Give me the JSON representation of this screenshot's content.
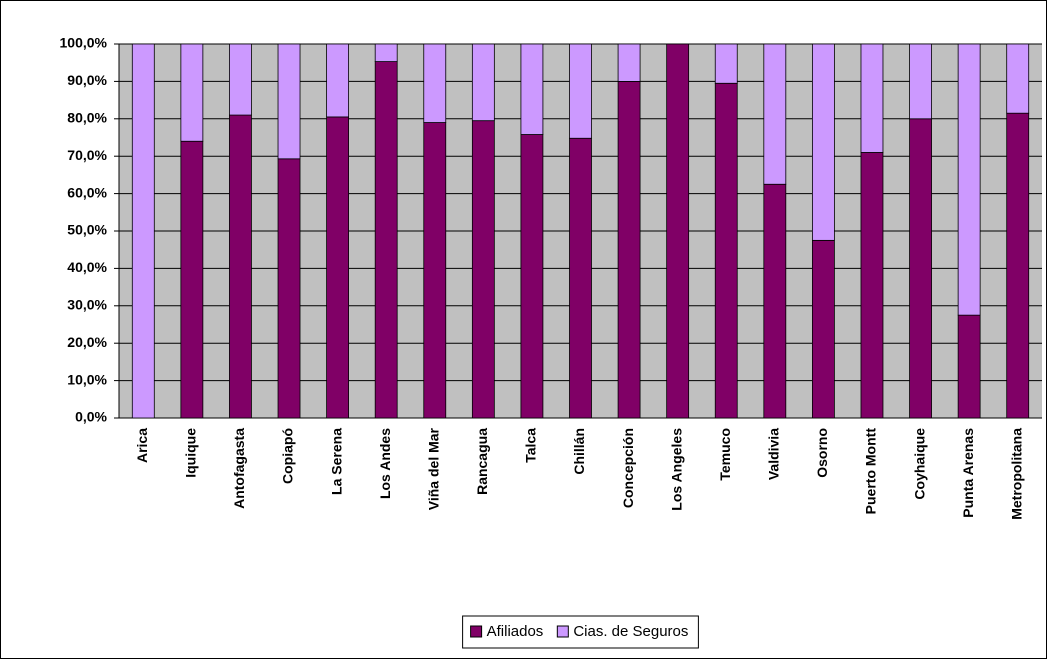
{
  "chart_data": {
    "type": "stacked_bar_100",
    "categories": [
      "Arica",
      "Iquique",
      "Antofagasta",
      "Copiapó",
      "La Serena",
      "Los Andes",
      "Viña del Mar",
      "Rancagua",
      "Talca",
      "Chillán",
      "Concepción",
      "Los Angeles",
      "Temuco",
      "Valdivia",
      "Osorno",
      "Puerto Montt",
      "Coyhaique",
      "Punta Arenas",
      "Metropolitana"
    ],
    "series": [
      {
        "name": "Afiliados",
        "color": "#800066",
        "values": [
          0,
          74,
          81,
          69.3,
          80.5,
          95.3,
          79,
          79.5,
          75.8,
          74.8,
          90,
          100,
          89.5,
          62.5,
          47.5,
          71,
          80,
          27.5,
          81.5
        ]
      },
      {
        "name": "Cias. de Seguros",
        "color": "#cc99ff",
        "values": [
          100,
          26,
          19,
          30.7,
          19.5,
          4.7,
          21,
          20.5,
          24.2,
          25.2,
          10,
          0,
          10.5,
          37.5,
          52.5,
          29,
          20,
          72.5,
          18.5
        ]
      }
    ],
    "ylim": [
      0,
      100
    ],
    "yticks": [
      {
        "value": 0,
        "label": "0,0%"
      },
      {
        "value": 10,
        "label": "10,0%"
      },
      {
        "value": 20,
        "label": "20,0%"
      },
      {
        "value": 30,
        "label": "30,0%"
      },
      {
        "value": 40,
        "label": "40,0%"
      },
      {
        "value": 50,
        "label": "50,0%"
      },
      {
        "value": 60,
        "label": "60,0%"
      },
      {
        "value": 70,
        "label": "70,0%"
      },
      {
        "value": 80,
        "label": "80,0%"
      },
      {
        "value": 90,
        "label": "90,0%"
      },
      {
        "value": 100,
        "label": "100,0%"
      }
    ],
    "grid": true,
    "legend": "bottom"
  }
}
